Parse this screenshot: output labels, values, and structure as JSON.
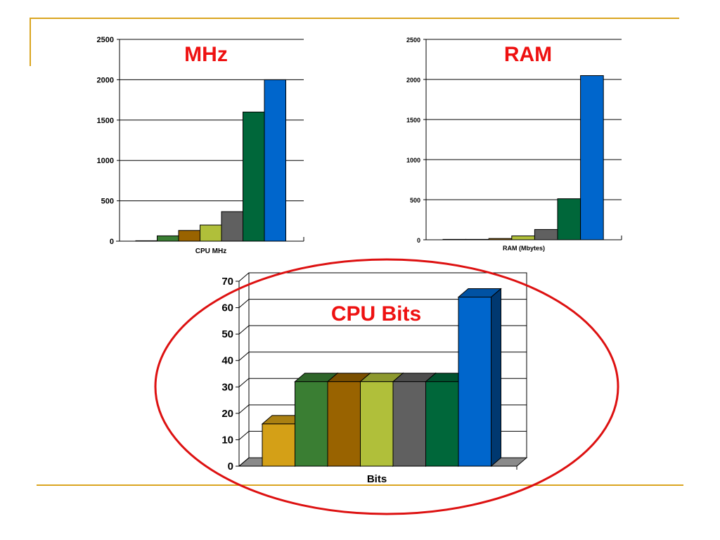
{
  "colors": {
    "frame": "#DAA520",
    "title": "#EE1111",
    "ellipse": "#DD1111",
    "grid": "#000000"
  },
  "chart_data": [
    {
      "type": "bar",
      "title": "MHz",
      "xlabel": "CPU MHz",
      "ylim": [
        0,
        2500
      ],
      "yticks": [
        0,
        500,
        1000,
        1500,
        2000,
        2500
      ],
      "values": [
        4.77,
        66,
        133,
        200,
        366,
        1600,
        2000
      ],
      "colors": [
        "#D4A017",
        "#3A7E33",
        "#996300",
        "#B0BF3A",
        "#606060",
        "#00673A",
        "#0066CC"
      ]
    },
    {
      "type": "bar",
      "title": "RAM",
      "xlabel": "RAM (Mbytes)",
      "ylim": [
        0,
        2500
      ],
      "yticks": [
        0,
        500,
        1000,
        1500,
        2000,
        2500
      ],
      "values": [
        1,
        4,
        16,
        48,
        128,
        512,
        2048
      ],
      "colors": [
        "#D4A017",
        "#3A7E33",
        "#996300",
        "#B0BF3A",
        "#606060",
        "#00673A",
        "#0066CC"
      ]
    },
    {
      "type": "bar",
      "title": "CPU Bits",
      "xlabel": "Bits",
      "ylim": [
        0,
        70
      ],
      "yticks": [
        0,
        10,
        20,
        30,
        40,
        50,
        60,
        70
      ],
      "values": [
        16,
        32,
        32,
        32,
        32,
        32,
        64
      ],
      "colors": [
        "#D4A017",
        "#3A7E33",
        "#996300",
        "#B0BF3A",
        "#606060",
        "#00673A",
        "#0066CC"
      ]
    }
  ]
}
